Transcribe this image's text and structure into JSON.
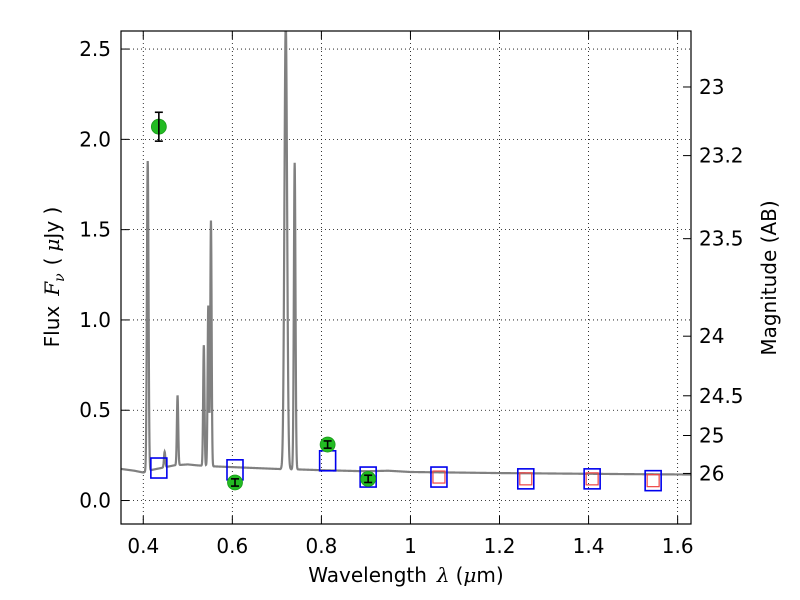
{
  "chart_data": {
    "type": "line",
    "xlabel": {
      "text": "Wavelength",
      "symbol": "λ",
      "unit_open": "(",
      "unit_mu": "μ",
      "unit_rest": "m)"
    },
    "ylabel": {
      "text": "Flux",
      "symbol": "F",
      "subscript": "ν",
      "unit_open": "(",
      "unit_mu": "μ",
      "unit_rest": "Jy )"
    },
    "y2label": "Magnitude (AB)",
    "xlim": [
      0.35,
      1.63
    ],
    "ylim": [
      -0.13,
      2.6
    ],
    "xticks": [
      0.4,
      0.6,
      0.8,
      1.0,
      1.2,
      1.4,
      1.6
    ],
    "xtick_labels": [
      "0.4",
      "0.6",
      "0.8",
      "1",
      "1.2",
      "1.4",
      "1.6"
    ],
    "yticks": [
      0.0,
      0.5,
      1.0,
      1.5,
      2.0,
      2.5
    ],
    "ytick_labels": [
      "0.0",
      "0.5",
      "1.0",
      "1.5",
      "2.0",
      "2.5"
    ],
    "y2ticks": [
      {
        "label": "23",
        "flux": 2.29
      },
      {
        "label": "23.2",
        "flux": 1.91
      },
      {
        "label": "23.5",
        "flux": 1.45
      },
      {
        "label": "24",
        "flux": 0.91
      },
      {
        "label": "24.5",
        "flux": 0.58
      },
      {
        "label": "25",
        "flux": 0.36
      },
      {
        "label": "26",
        "flux": 0.15
      }
    ],
    "grid": true,
    "colors": {
      "sed": "#808080",
      "observed": "#22bb22",
      "model_box": "#0000ee",
      "model_inner": "#ee4444"
    },
    "series": [
      {
        "kind": "sed",
        "continuum": [
          [
            0.35,
            0.175
          ],
          [
            0.38,
            0.165
          ],
          [
            0.4,
            0.155
          ],
          [
            0.408,
            0.16
          ],
          [
            0.42,
            0.17
          ],
          [
            0.45,
            0.185
          ],
          [
            0.47,
            0.195
          ],
          [
            0.5,
            0.2
          ],
          [
            0.52,
            0.195
          ],
          [
            0.55,
            0.19
          ],
          [
            0.6,
            0.185
          ],
          [
            0.65,
            0.18
          ],
          [
            0.7,
            0.175
          ],
          [
            0.75,
            0.172
          ],
          [
            0.8,
            0.168
          ],
          [
            0.85,
            0.165
          ],
          [
            0.9,
            0.162
          ],
          [
            0.95,
            0.165
          ],
          [
            1.0,
            0.158
          ],
          [
            1.1,
            0.155
          ],
          [
            1.2,
            0.152
          ],
          [
            1.3,
            0.15
          ],
          [
            1.4,
            0.148
          ],
          [
            1.5,
            0.146
          ],
          [
            1.63,
            0.144
          ]
        ],
        "lines": [
          {
            "x": 0.41,
            "peak": 1.88,
            "width": 0.0018
          },
          {
            "x": 0.448,
            "peak": 0.27,
            "width": 0.0015
          },
          {
            "x": 0.477,
            "peak": 0.58,
            "width": 0.0015
          },
          {
            "x": 0.536,
            "peak": 0.86,
            "width": 0.0015
          },
          {
            "x": 0.546,
            "peak": 1.08,
            "width": 0.0015
          },
          {
            "x": 0.552,
            "peak": 1.55,
            "width": 0.0015
          },
          {
            "x": 0.72,
            "peak": 2.65,
            "width": 0.003
          },
          {
            "x": 0.74,
            "peak": 1.87,
            "width": 0.0018
          }
        ]
      },
      {
        "kind": "observed",
        "points": [
          {
            "x": 0.435,
            "y": 2.07,
            "err": 0.08
          },
          {
            "x": 0.606,
            "y": 0.1,
            "err": 0.02
          },
          {
            "x": 0.814,
            "y": 0.31,
            "err": 0.02
          },
          {
            "x": 0.905,
            "y": 0.12,
            "err": 0.02
          }
        ]
      },
      {
        "kind": "model",
        "points": [
          {
            "x": 0.435,
            "y": 0.18,
            "inner": false
          },
          {
            "x": 0.606,
            "y": 0.17,
            "inner": false
          },
          {
            "x": 0.814,
            "y": 0.22,
            "inner": false
          },
          {
            "x": 0.905,
            "y": 0.13,
            "inner": false
          },
          {
            "x": 1.064,
            "y": 0.13,
            "inner": true
          },
          {
            "x": 1.259,
            "y": 0.12,
            "inner": true
          },
          {
            "x": 1.408,
            "y": 0.12,
            "inner": true
          },
          {
            "x": 1.545,
            "y": 0.11,
            "inner": true
          }
        ]
      }
    ]
  }
}
